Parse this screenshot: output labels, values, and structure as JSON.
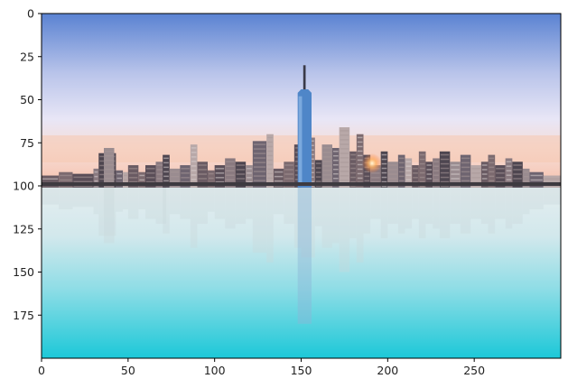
{
  "chart_data": {
    "type": "image",
    "title": "",
    "xlabel": "",
    "ylabel": "",
    "xlim": [
      0,
      300
    ],
    "ylim": [
      200,
      0
    ],
    "x_ticks": [
      0,
      50,
      100,
      150,
      200,
      250
    ],
    "y_ticks": [
      0,
      25,
      50,
      75,
      100,
      125,
      150,
      175
    ],
    "x_tick_labels": [
      "0",
      "50",
      "100",
      "150",
      "200",
      "250"
    ],
    "y_tick_labels": [
      "0",
      "25",
      "50",
      "75",
      "100",
      "125",
      "150",
      "175"
    ],
    "grid": false,
    "image_content": "city-skyline-with-water-reflection",
    "colors": {
      "sky_top": "#5a82d2",
      "sky_mid": "#e8e6f6",
      "sunset_band": "#f5c4b0",
      "water_top": "#e2eef0",
      "water_bottom": "#1cc8d8",
      "buildings": "#6b5a5e"
    }
  }
}
